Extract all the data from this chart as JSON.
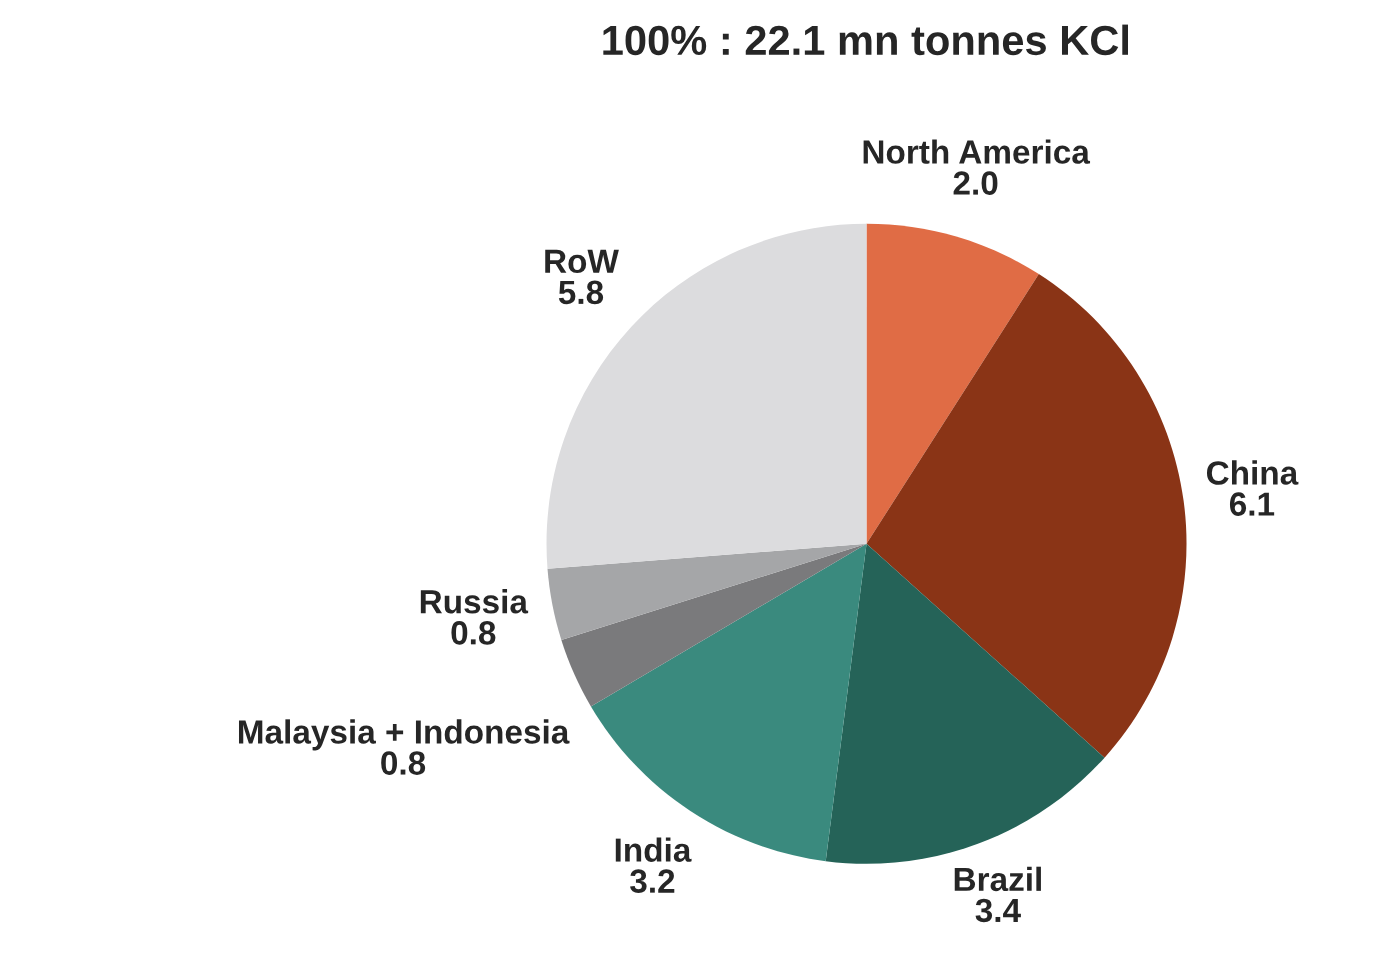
{
  "chart_data": {
    "type": "pie",
    "title": "100% : 22.1 mn tonnes KCl",
    "categories": [
      "North America",
      "China",
      "Brazil",
      "India",
      "Malaysia + Indonesia",
      "Russia",
      "RoW"
    ],
    "values": [
      2.0,
      6.1,
      3.4,
      3.2,
      0.8,
      0.8,
      5.8
    ],
    "colors": [
      "#e06c45",
      "#8a3416",
      "#256358",
      "#3a8a7e",
      "#7a7a7c",
      "#a5a6a8",
      "#dcdcde"
    ],
    "value_labels": [
      "2.0",
      "6.1",
      "3.4",
      "3.2",
      "0.8",
      "0.8",
      "5.8"
    ]
  }
}
